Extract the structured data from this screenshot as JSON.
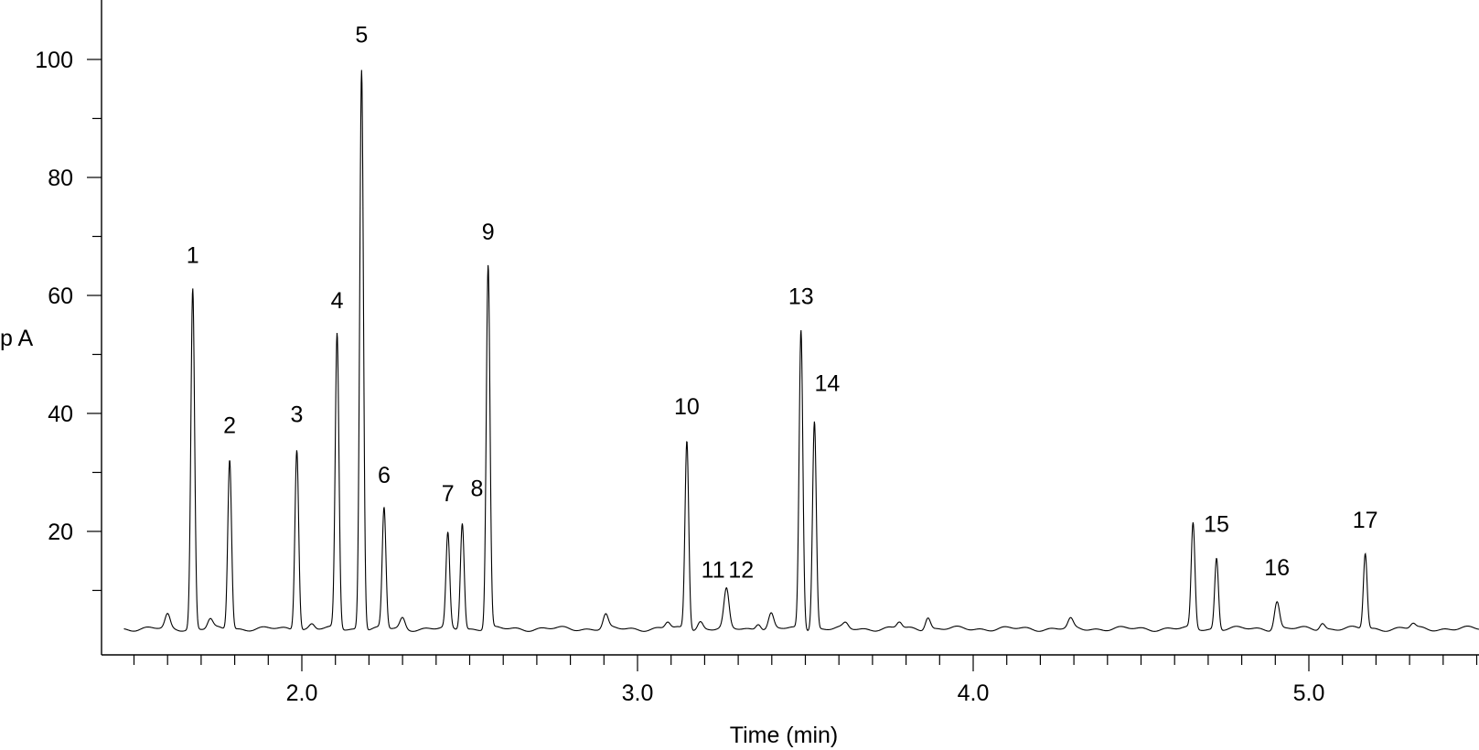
{
  "chart_data": {
    "type": "line",
    "title": "",
    "xlabel": "Time (min)",
    "ylabel": "p A",
    "xlim": [
      1.45,
      5.55
    ],
    "ylim": [
      -4,
      107
    ],
    "x_ticks": [
      2.0,
      3.0,
      4.0,
      5.0
    ],
    "x_tick_labels": [
      "2.0",
      "3.0",
      "4.0",
      "5.0"
    ],
    "x_minor_step": 0.1,
    "y_ticks": [
      20,
      40,
      60,
      80,
      100
    ],
    "y_tick_labels": [
      "20",
      "40",
      "60",
      "80",
      "100"
    ],
    "y_minor_step": 10,
    "grid": false,
    "legend": "none",
    "baseline": 3.5,
    "peaks": [
      {
        "label": "1",
        "time": 1.675,
        "height": 61.2
      },
      {
        "label": "2",
        "time": 1.785,
        "height": 32.3
      },
      {
        "label": "3",
        "time": 1.985,
        "height": 34.2
      },
      {
        "label": "4",
        "time": 2.105,
        "height": 53.5
      },
      {
        "label": "5",
        "time": 2.178,
        "height": 98.5
      },
      {
        "label": "6",
        "time": 2.245,
        "height": 23.9
      },
      {
        "label": "7",
        "time": 2.435,
        "height": 19.5
      },
      {
        "label": "8",
        "time": 2.478,
        "height": 21.6
      },
      {
        "label": "9",
        "time": 2.555,
        "height": 65.1
      },
      {
        "label": "10",
        "time": 3.147,
        "height": 35.5
      },
      {
        "label": "11",
        "time": 3.187,
        "height": 4.8
      },
      {
        "label": "12",
        "time": 3.265,
        "height": 10.0
      },
      {
        "label": "13",
        "time": 3.487,
        "height": 54.2
      },
      {
        "label": "14",
        "time": 3.527,
        "height": 38.8
      },
      {
        "label": "15",
        "time": 4.725,
        "height": 15.6
      },
      {
        "label": "16",
        "time": 4.905,
        "height": 8.2
      },
      {
        "label": "17",
        "time": 5.168,
        "height": 16.3
      }
    ],
    "minor_peaks": [
      {
        "time": 1.6,
        "height": 5.8
      },
      {
        "time": 1.727,
        "height": 5.0
      },
      {
        "time": 2.03,
        "height": 4.3
      },
      {
        "time": 2.3,
        "height": 5.3
      },
      {
        "time": 2.905,
        "height": 5.8
      },
      {
        "time": 3.09,
        "height": 4.6
      },
      {
        "time": 3.36,
        "height": 4.6
      },
      {
        "time": 3.398,
        "height": 6.0
      },
      {
        "time": 3.62,
        "height": 4.3
      },
      {
        "time": 3.78,
        "height": 4.6
      },
      {
        "time": 3.865,
        "height": 5.6
      },
      {
        "time": 4.29,
        "height": 5.0
      },
      {
        "time": 4.655,
        "height": 21.3
      },
      {
        "time": 5.04,
        "height": 4.6
      },
      {
        "time": 5.31,
        "height": 4.3
      }
    ]
  }
}
